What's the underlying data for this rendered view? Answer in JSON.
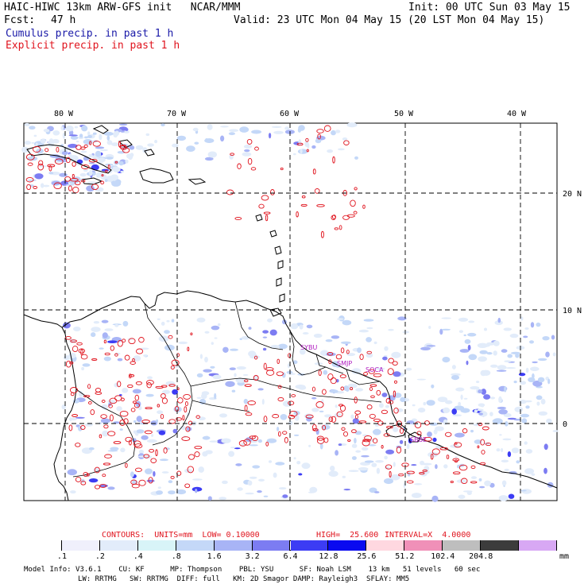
{
  "header": {
    "title_left": "HAIC-HIWC 13km ARW-GFS init   NCAR/MMM",
    "init": "Init: 00 UTC Sun 03 May 15",
    "fcst_label": "Fcst:",
    "fcst_value": "47 h",
    "valid": "Valid: 23 UTC Mon 04 May 15 (20 LST Mon 04 May 15)",
    "cumulus_label": "Cumulus precip. in past 1 h",
    "explicit_label": "Explicit precip. in past 1 h"
  },
  "map": {
    "lon_labels": [
      "80 W",
      "70 W",
      "60 W",
      "50 W",
      "40 W"
    ],
    "lat_labels": [
      "20 N",
      "10 N",
      "0"
    ],
    "station_labels": [
      "SYBU",
      "SMJP",
      "SOCA",
      "SBBE"
    ],
    "colors": {
      "cumulus": "#3c3cf0",
      "explicit": "#e0141e",
      "coast": "#000000",
      "station": "#b01cc0"
    }
  },
  "contours": {
    "units_label": "CONTOURS:  UNITS=mm  LOW= 0.10000",
    "high_label": "HIGH=  25.600",
    "interval_label": "INTERVAL=X  4.0000"
  },
  "colorbar": {
    "ticks": [
      ".1",
      ".2",
      ".4",
      ".8",
      "1.6",
      "3.2",
      "6.4",
      "12.8",
      "25.6",
      "51.2",
      "102.4",
      "204.8"
    ],
    "unit": "mm",
    "colors": [
      "#ffffff",
      "#f0f0fc",
      "#e2ecfa",
      "#d8f4f8",
      "#c4d8f8",
      "#a8b4f6",
      "#7c7cf2",
      "#3c3cf4",
      "#0a0af0",
      "#ffd8e0",
      "#f090b8",
      "#bebebe",
      "#3c3c3c",
      "#d8a8f4"
    ]
  },
  "footer": {
    "line1": "Model Info: V3.6.1    CU: KF      MP: Thompson    PBL: YSU      SF: Noah LSM    13 km   51 levels   60 sec",
    "line2": "LW: RRTMG   SW: RRTMG  DIFF: full   KM: 2D Smagor DAMP: Rayleigh3  SFLAY: MM5"
  }
}
